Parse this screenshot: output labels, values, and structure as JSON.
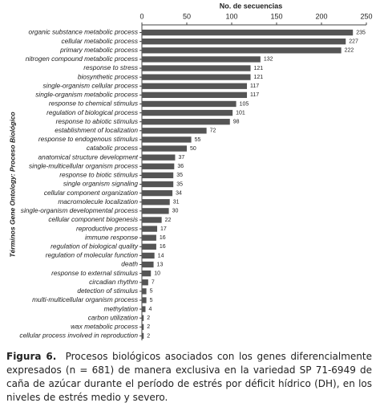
{
  "chart_data": {
    "type": "bar",
    "orientation": "horizontal",
    "x_label": "No. de secuencias",
    "y_label": "Términos Gene Ontology: Proceso Biológico",
    "categories": [
      "organic substance metabolic process",
      "cellular metabolic process",
      "primary metabolic process",
      "nitrogen compound metabolic process",
      "response to stress",
      "biosynthetic process",
      "single-organism cellular process",
      "single-organism metabolic process",
      "response to chemical stimulus",
      "regulation of biological process",
      "response to abiotic stimulus",
      "establishment of localization",
      "response to endogenous stimulus",
      "catabolic process",
      "anatomical structure development",
      "single-multicellular organism process",
      "response to biotic stimulus",
      "single organism signaling",
      "cellular component organization",
      "macromolecule localization",
      "single-organism developmental process",
      "cellular component biogenesis",
      "reproductive process",
      "immune response",
      "regulation of biological quality",
      "regulation of molecular function",
      "death",
      "response to external stimulus",
      "circadian rhythm",
      "detection of stimulus",
      "multi-multicellular organism process",
      "methylation",
      "carbon utilization",
      "wax metabolic process",
      "cellular process involved in reproduction"
    ],
    "values": [
      235,
      227,
      222,
      132,
      121,
      121,
      117,
      117,
      105,
      101,
      98,
      72,
      55,
      50,
      37,
      36,
      35,
      35,
      34,
      31,
      30,
      22,
      17,
      16,
      16,
      14,
      13,
      10,
      7,
      5,
      5,
      4,
      2,
      2,
      2
    ],
    "color": "#555555",
    "xlim": [
      0,
      250
    ],
    "xticks": [
      0,
      50,
      100,
      150,
      200,
      250
    ]
  },
  "caption": {
    "label": "Figura 6.",
    "text": "Procesos biológicos asociados con los genes diferencialmente expresados (n = 681) de manera exclusiva en la variedad SP 71-6949 de caña de azúcar durante el período de estrés por déficit hídrico (DH), en los niveles de estrés medio y severo."
  }
}
